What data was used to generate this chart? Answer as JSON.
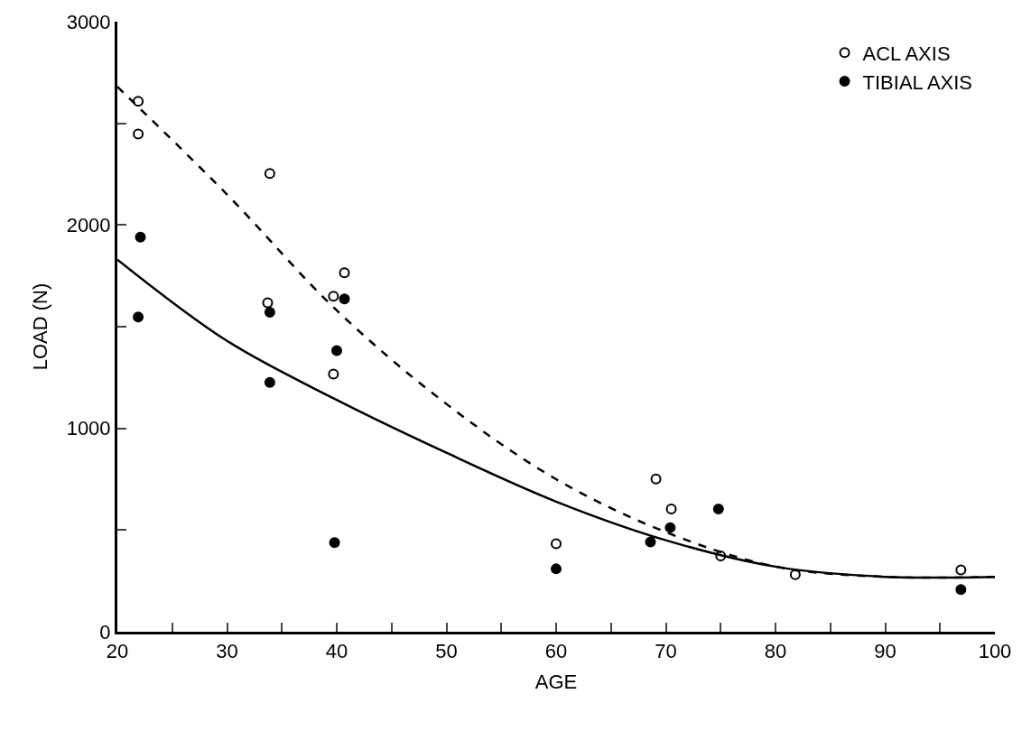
{
  "chart_data": {
    "type": "scatter",
    "xlabel": "AGE",
    "ylabel": "LOAD (N)",
    "xlim": [
      20,
      100
    ],
    "ylim": [
      0,
      3000
    ],
    "xticks": [
      20,
      {
        "value": 25,
        "label": null
      },
      30,
      {
        "value": 35,
        "label": null
      },
      40,
      {
        "value": 45,
        "label": null
      },
      50,
      {
        "value": 55,
        "label": null
      },
      60,
      {
        "value": 65,
        "label": null
      },
      70,
      {
        "value": 75,
        "label": null
      },
      80,
      {
        "value": 85,
        "label": null
      },
      90,
      {
        "value": 95,
        "label": null
      },
      100
    ],
    "yticks": [
      0,
      {
        "value": 500,
        "label": null
      },
      1000,
      {
        "value": 1500,
        "label": null
      },
      2000,
      {
        "value": 2500,
        "label": null
      },
      3000
    ],
    "legend": "top right",
    "series": [
      {
        "name": "ACL AXIS",
        "marker": "circle-open",
        "color": "#000000",
        "x": [
          21.9,
          21.9,
          33.9,
          40.7,
          39.7,
          33.7,
          39.7,
          69.1,
          70.5,
          60.0,
          75.0,
          81.8,
          96.9
        ],
        "values": [
          2608,
          2447,
          2253,
          1765,
          1650,
          1618,
          1267,
          751,
          604,
          433,
          373,
          281,
          304
        ]
      },
      {
        "name": "TIBIAL AXIS",
        "marker": "circle",
        "color": "#000000",
        "x": [
          22.1,
          21.9,
          33.9,
          40.7,
          40.0,
          33.9,
          39.8,
          60.0,
          68.6,
          70.4,
          74.8,
          96.9
        ],
        "values": [
          1940,
          1548,
          1571,
          1636,
          1382,
          1226,
          438,
          309,
          442,
          512,
          604,
          207
        ]
      },
      {
        "type": "line",
        "line_style": "dashed",
        "color": "#000000",
        "x": [
          20,
          30,
          40,
          50,
          60,
          70,
          80,
          90,
          100
        ],
        "values": [
          2680,
          2150,
          1580,
          1120,
          750,
          490,
          320,
          270,
          270
        ]
      },
      {
        "type": "line",
        "line_style": "solid",
        "color": "#000000",
        "x": [
          20,
          30,
          40,
          50,
          60,
          70,
          80,
          90,
          100
        ],
        "values": [
          1830,
          1430,
          1140,
          880,
          640,
          450,
          320,
          270,
          270
        ]
      }
    ]
  }
}
